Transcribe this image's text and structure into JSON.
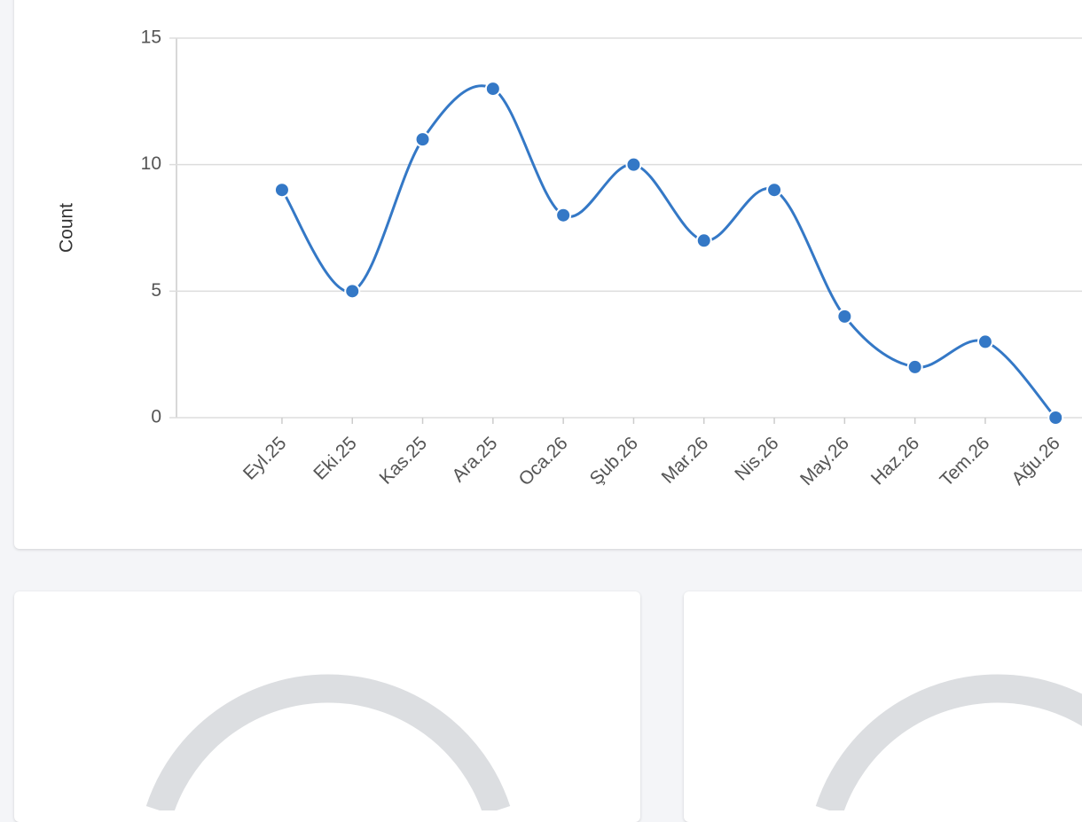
{
  "chart_data": {
    "type": "line",
    "y_label": "Count",
    "categories": [
      "Eyl.25",
      "Eki.25",
      "Kas.25",
      "Ara.25",
      "Oca.26",
      "Şub.26",
      "Mar.26",
      "Nis.26",
      "May.26",
      "Haz.26",
      "Tem.26",
      "Ağu.26"
    ],
    "values": [
      9,
      5,
      11,
      13,
      8,
      10,
      7,
      9,
      4,
      2,
      3,
      0
    ],
    "color": "#3478c6",
    "ylim": [
      0,
      15
    ],
    "yticks": [
      0,
      5,
      10,
      15
    ],
    "grid": true
  }
}
